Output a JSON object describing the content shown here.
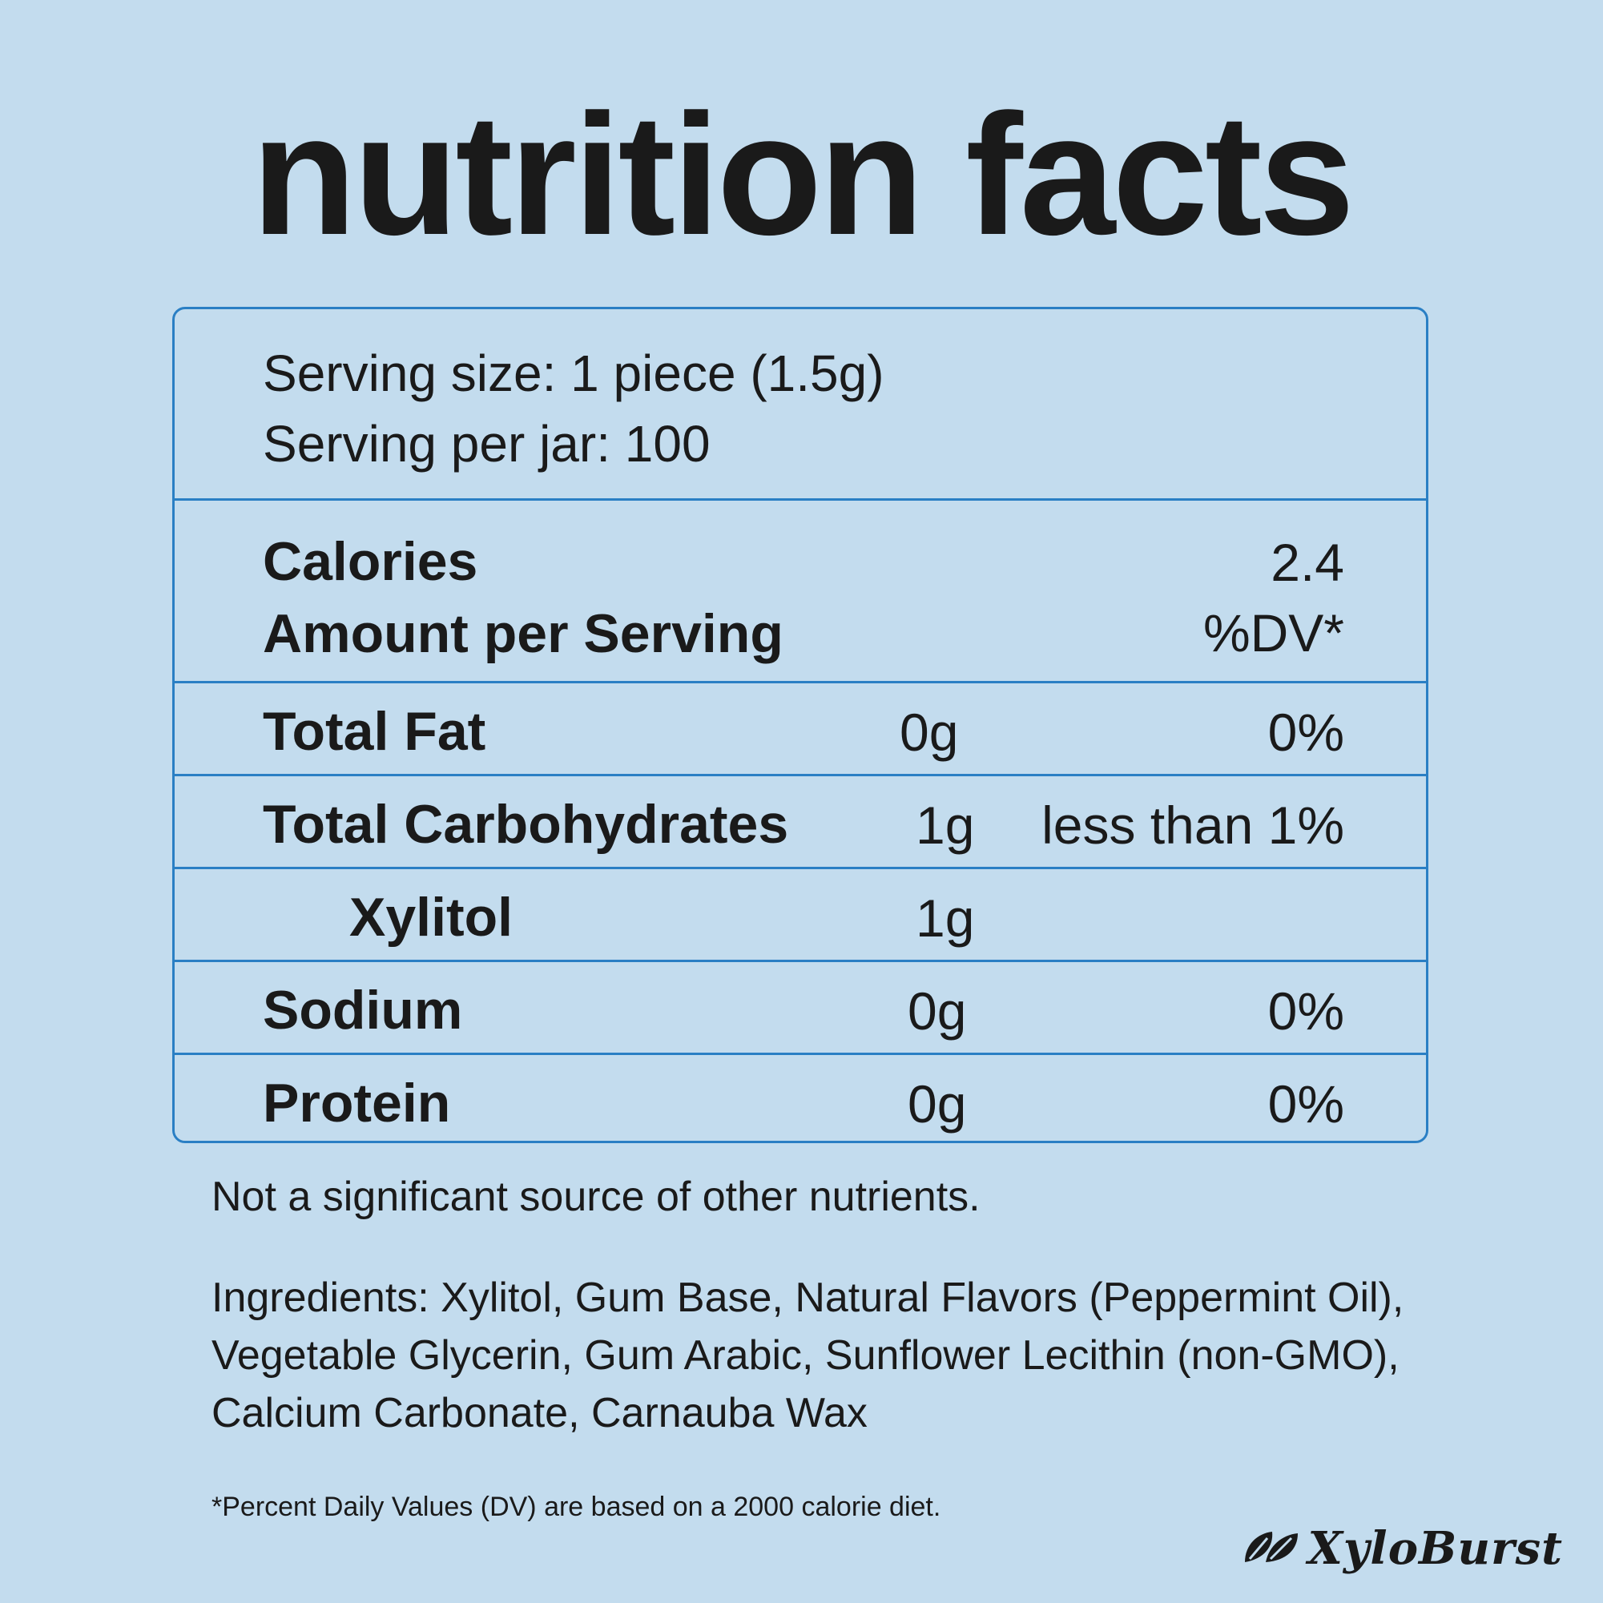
{
  "title": "nutrition facts",
  "serving": {
    "size": "Serving size: 1 piece (1.5g)",
    "per_jar": "Serving per jar: 100"
  },
  "calories": {
    "label": "Calories",
    "value": "2.4",
    "amount_label": "Amount per Serving",
    "dv_label": "%DV*"
  },
  "nutrients": [
    {
      "name": "Total Fat",
      "amount": "0g",
      "dv": "0%"
    },
    {
      "name": "Total Carbohydrates",
      "amount": "1g",
      "dv": "less than 1%"
    },
    {
      "name": "Xylitol",
      "amount": "1g",
      "dv": ""
    },
    {
      "name": "Sodium",
      "amount": "0g",
      "dv": "0%"
    },
    {
      "name": "Protein",
      "amount": "0g",
      "dv": "0%"
    }
  ],
  "not_significant": "Not a significant source of other nutrients.",
  "ingredients": "Ingredients: Xylitol, Gum Base, Natural Flavors (Peppermint Oil), Vegetable Glycerin, Gum Arabic, Sunflower Lecithin (non-GMO), Calcium Carbonate, Carnauba Wax",
  "footnote": "*Percent Daily Values (DV) are based on a 2000 calorie diet.",
  "brand": {
    "name": "XyloBurst",
    "icon": "leaf-icon"
  },
  "colors": {
    "background": "#c3dcee",
    "border": "#2a7fc4",
    "text": "#1a1a1a"
  }
}
